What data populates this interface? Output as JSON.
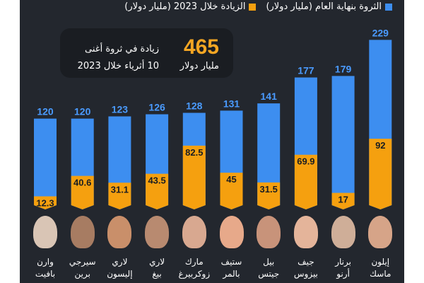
{
  "chart_data": {
    "type": "bar",
    "title": "",
    "legend": [
      {
        "label": "الثروة بنهاية العام (مليار دولار)",
        "color": "#3d8ef0"
      },
      {
        "label": "الزيادة خلال 2023 (مليار دولار)",
        "color": "#f5a00f"
      }
    ],
    "legend_position": "top-right",
    "categories": [
      "وارن بافيت",
      "سيرجي برين",
      "لاري إليسون",
      "لاري بيغ",
      "مارك زوكربيرغ",
      "ستيف بالمر",
      "بيل جيتس",
      "جيف بيزوس",
      "برنار أرنو",
      "إيلون ماسك"
    ],
    "series": [
      {
        "name": "الثروة بنهاية العام (مليار دولار)",
        "values": [
          120,
          120,
          123,
          126,
          128,
          131,
          141,
          177,
          179,
          229
        ]
      },
      {
        "name": "الزيادة خلال 2023 (مليار دولار)",
        "values": [
          12.3,
          40.6,
          31.1,
          43.5,
          82.5,
          45,
          31.5,
          69.9,
          17,
          92
        ]
      }
    ],
    "ylim": [
      0,
      229
    ]
  },
  "callout": {
    "value": "465",
    "line1": "زيادة في ثروة أغنى",
    "line2": "10 أثرياء خلال 2023",
    "unit": "مليار دولار"
  },
  "names": [
    [
      "وارن",
      "بافيت"
    ],
    [
      "سيرجي",
      "برين"
    ],
    [
      "لاري",
      "إليسون"
    ],
    [
      "لاري",
      "بيغ"
    ],
    [
      "مارك",
      "زوكربيرغ"
    ],
    [
      "ستيف",
      "بالمر"
    ],
    [
      "بيل",
      "جيتس"
    ],
    [
      "جيف",
      "بيزوس"
    ],
    [
      "برنار",
      "أرنو"
    ],
    [
      "إيلون",
      "ماسك"
    ]
  ]
}
